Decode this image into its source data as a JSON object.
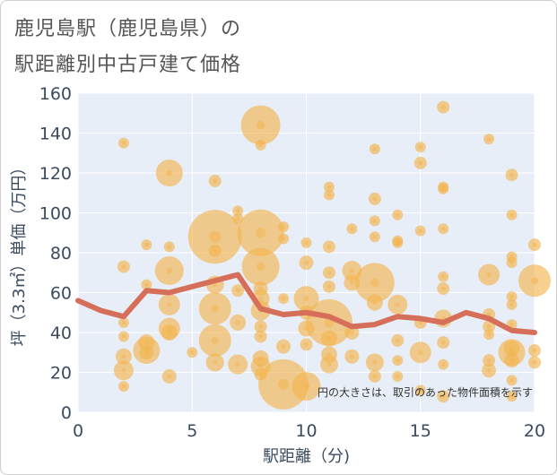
{
  "title_line1": "鹿児島駅（鹿児島県）の",
  "title_line2": "駅距離別中古戸建て価格",
  "chart_data": {
    "type": "scatter",
    "xlabel": "駅距離（分)",
    "ylabel": "坪（3.3㎡）単価（万円）",
    "xlim": [
      0,
      20
    ],
    "ylim": [
      0,
      160
    ],
    "xticks": [
      0,
      5,
      10,
      15,
      20
    ],
    "yticks": [
      0,
      20,
      40,
      60,
      80,
      100,
      120,
      140,
      160
    ],
    "grid": true,
    "note": "円の大きさは、取引のあった物件面積を示す",
    "colors": {
      "bubble": "#f2b552",
      "line": "#d56f5a",
      "plot_bg": "#e8eef7",
      "grid": "#ffffff"
    },
    "average_line": {
      "x": [
        0,
        1,
        2,
        3,
        4,
        5,
        6,
        7,
        8,
        9,
        10,
        11,
        12,
        13,
        14,
        15,
        16,
        17,
        18,
        19,
        20
      ],
      "y": [
        56,
        51,
        48,
        61,
        60,
        63,
        66,
        69,
        52,
        49,
        50,
        48,
        43,
        44,
        48,
        47,
        45,
        50,
        47,
        41,
        40
      ]
    },
    "bubbles": [
      {
        "x": 2,
        "y": 135,
        "s": 6
      },
      {
        "x": 2,
        "y": 73,
        "s": 7
      },
      {
        "x": 2,
        "y": 45,
        "s": 6
      },
      {
        "x": 2,
        "y": 38,
        "s": 6
      },
      {
        "x": 2,
        "y": 28,
        "s": 9
      },
      {
        "x": 2,
        "y": 21,
        "s": 11
      },
      {
        "x": 2,
        "y": 13,
        "s": 6
      },
      {
        "x": 3,
        "y": 84,
        "s": 6
      },
      {
        "x": 3,
        "y": 64,
        "s": 6
      },
      {
        "x": 3,
        "y": 35,
        "s": 9
      },
      {
        "x": 3,
        "y": 31,
        "s": 15
      },
      {
        "x": 3,
        "y": 30,
        "s": 8
      },
      {
        "x": 4,
        "y": 120,
        "s": 15
      },
      {
        "x": 4,
        "y": 83,
        "s": 6
      },
      {
        "x": 4,
        "y": 71,
        "s": 16
      },
      {
        "x": 4,
        "y": 54,
        "s": 12
      },
      {
        "x": 4,
        "y": 42,
        "s": 12
      },
      {
        "x": 4,
        "y": 40,
        "s": 9
      },
      {
        "x": 4,
        "y": 18,
        "s": 8
      },
      {
        "x": 5,
        "y": 30,
        "s": 6
      },
      {
        "x": 6,
        "y": 116,
        "s": 7
      },
      {
        "x": 6,
        "y": 88,
        "s": 30
      },
      {
        "x": 6,
        "y": 81,
        "s": 7
      },
      {
        "x": 6,
        "y": 64,
        "s": 10
      },
      {
        "x": 6,
        "y": 52,
        "s": 18
      },
      {
        "x": 6,
        "y": 36,
        "s": 18
      },
      {
        "x": 6,
        "y": 25,
        "s": 10
      },
      {
        "x": 7,
        "y": 101,
        "s": 6
      },
      {
        "x": 7,
        "y": 97,
        "s": 6
      },
      {
        "x": 7,
        "y": 61,
        "s": 7
      },
      {
        "x": 7,
        "y": 45,
        "s": 9
      },
      {
        "x": 7,
        "y": 24,
        "s": 11
      },
      {
        "x": 8,
        "y": 144,
        "s": 22
      },
      {
        "x": 8,
        "y": 134,
        "s": 6
      },
      {
        "x": 8,
        "y": 90,
        "s": 26
      },
      {
        "x": 8,
        "y": 73,
        "s": 21
      },
      {
        "x": 8,
        "y": 62,
        "s": 8
      },
      {
        "x": 8,
        "y": 57,
        "s": 10
      },
      {
        "x": 8,
        "y": 51,
        "s": 11
      },
      {
        "x": 8,
        "y": 43,
        "s": 7
      },
      {
        "x": 8,
        "y": 38,
        "s": 7
      },
      {
        "x": 8,
        "y": 27,
        "s": 9
      },
      {
        "x": 8,
        "y": 23,
        "s": 11
      },
      {
        "x": 8,
        "y": 19,
        "s": 7
      },
      {
        "x": 9,
        "y": 93,
        "s": 6
      },
      {
        "x": 9,
        "y": 87,
        "s": 6
      },
      {
        "x": 9,
        "y": 57,
        "s": 6
      },
      {
        "x": 9,
        "y": 33,
        "s": 8
      },
      {
        "x": 9,
        "y": 14,
        "s": 28
      },
      {
        "x": 10,
        "y": 85,
        "s": 6
      },
      {
        "x": 10,
        "y": 75,
        "s": 8
      },
      {
        "x": 10,
        "y": 57,
        "s": 14
      },
      {
        "x": 10,
        "y": 50,
        "s": 8
      },
      {
        "x": 10,
        "y": 42,
        "s": 9
      },
      {
        "x": 10,
        "y": 34,
        "s": 7
      },
      {
        "x": 10,
        "y": 13,
        "s": 16
      },
      {
        "x": 11,
        "y": 113,
        "s": 6
      },
      {
        "x": 11,
        "y": 109,
        "s": 6
      },
      {
        "x": 11,
        "y": 83,
        "s": 7
      },
      {
        "x": 11,
        "y": 70,
        "s": 7
      },
      {
        "x": 11,
        "y": 63,
        "s": 7
      },
      {
        "x": 11,
        "y": 45,
        "s": 26
      },
      {
        "x": 11,
        "y": 37,
        "s": 9
      },
      {
        "x": 11,
        "y": 29,
        "s": 9
      },
      {
        "x": 11,
        "y": 24,
        "s": 10
      },
      {
        "x": 12,
        "y": 92,
        "s": 6
      },
      {
        "x": 12,
        "y": 71,
        "s": 11
      },
      {
        "x": 12,
        "y": 65,
        "s": 9
      },
      {
        "x": 12,
        "y": 40,
        "s": 8
      },
      {
        "x": 12,
        "y": 28,
        "s": 8
      },
      {
        "x": 13,
        "y": 132,
        "s": 6
      },
      {
        "x": 13,
        "y": 107,
        "s": 7
      },
      {
        "x": 13,
        "y": 96,
        "s": 6
      },
      {
        "x": 13,
        "y": 88,
        "s": 6
      },
      {
        "x": 13,
        "y": 65,
        "s": 22
      },
      {
        "x": 13,
        "y": 55,
        "s": 9
      },
      {
        "x": 13,
        "y": 25,
        "s": 10
      },
      {
        "x": 13,
        "y": 18,
        "s": 7
      },
      {
        "x": 14,
        "y": 99,
        "s": 6
      },
      {
        "x": 14,
        "y": 86,
        "s": 6
      },
      {
        "x": 14,
        "y": 85,
        "s": 6
      },
      {
        "x": 14,
        "y": 54,
        "s": 11
      },
      {
        "x": 14,
        "y": 36,
        "s": 7
      },
      {
        "x": 14,
        "y": 26,
        "s": 6
      },
      {
        "x": 14,
        "y": 18,
        "s": 6
      },
      {
        "x": 15,
        "y": 133,
        "s": 6
      },
      {
        "x": 15,
        "y": 125,
        "s": 7
      },
      {
        "x": 15,
        "y": 91,
        "s": 6
      },
      {
        "x": 15,
        "y": 45,
        "s": 7
      },
      {
        "x": 15,
        "y": 30,
        "s": 12
      },
      {
        "x": 15,
        "y": 11,
        "s": 6
      },
      {
        "x": 16,
        "y": 153,
        "s": 7
      },
      {
        "x": 16,
        "y": 113,
        "s": 6
      },
      {
        "x": 16,
        "y": 112,
        "s": 6
      },
      {
        "x": 16,
        "y": 92,
        "s": 6
      },
      {
        "x": 16,
        "y": 68,
        "s": 6
      },
      {
        "x": 16,
        "y": 62,
        "s": 7
      },
      {
        "x": 16,
        "y": 47,
        "s": 10
      },
      {
        "x": 16,
        "y": 35,
        "s": 7
      },
      {
        "x": 16,
        "y": 24,
        "s": 6
      },
      {
        "x": 16,
        "y": 8,
        "s": 7
      },
      {
        "x": 18,
        "y": 137,
        "s": 6
      },
      {
        "x": 18,
        "y": 69,
        "s": 12
      },
      {
        "x": 18,
        "y": 49,
        "s": 7
      },
      {
        "x": 18,
        "y": 43,
        "s": 7
      },
      {
        "x": 18,
        "y": 39,
        "s": 6
      },
      {
        "x": 18,
        "y": 26,
        "s": 7
      },
      {
        "x": 18,
        "y": 21,
        "s": 8
      },
      {
        "x": 19,
        "y": 119,
        "s": 7
      },
      {
        "x": 19,
        "y": 99,
        "s": 6
      },
      {
        "x": 19,
        "y": 78,
        "s": 6
      },
      {
        "x": 19,
        "y": 75,
        "s": 6
      },
      {
        "x": 19,
        "y": 58,
        "s": 6
      },
      {
        "x": 19,
        "y": 54,
        "s": 6
      },
      {
        "x": 19,
        "y": 44,
        "s": 6
      },
      {
        "x": 19,
        "y": 32,
        "s": 9
      },
      {
        "x": 19,
        "y": 30,
        "s": 15
      },
      {
        "x": 19,
        "y": 26,
        "s": 8
      },
      {
        "x": 19,
        "y": 16,
        "s": 6
      },
      {
        "x": 19,
        "y": 8,
        "s": 6
      },
      {
        "x": 20,
        "y": 84,
        "s": 7
      },
      {
        "x": 20,
        "y": 66,
        "s": 18
      },
      {
        "x": 20,
        "y": 31,
        "s": 7
      },
      {
        "x": 20,
        "y": 25,
        "s": 7
      }
    ]
  }
}
